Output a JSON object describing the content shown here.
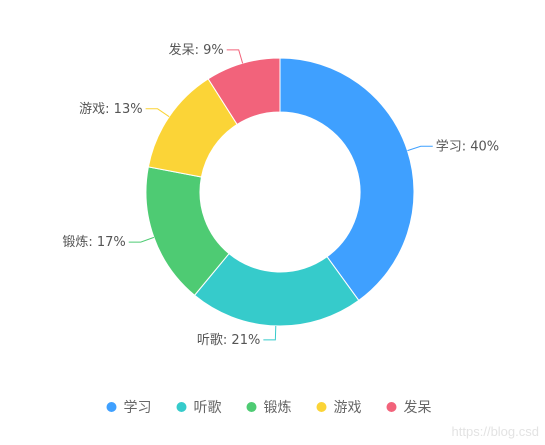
{
  "chart_data": {
    "type": "pie",
    "variant": "donut",
    "categories": [
      "学习",
      "听歌",
      "锻炼",
      "游戏",
      "发呆"
    ],
    "values": [
      40,
      21,
      17,
      13,
      9
    ],
    "labels": [
      "学习: 40%",
      "听歌: 21%",
      "锻炼: 17%",
      "游戏: 13%",
      "发呆: 9%"
    ],
    "colors": [
      "#3fa0ff",
      "#36cbcb",
      "#4ecb73",
      "#fbd437",
      "#f2637b"
    ],
    "legend": {
      "position": "bottom",
      "items": [
        "学习",
        "听歌",
        "锻炼",
        "游戏",
        "发呆"
      ]
    }
  },
  "watermark": "https://blog.csd"
}
